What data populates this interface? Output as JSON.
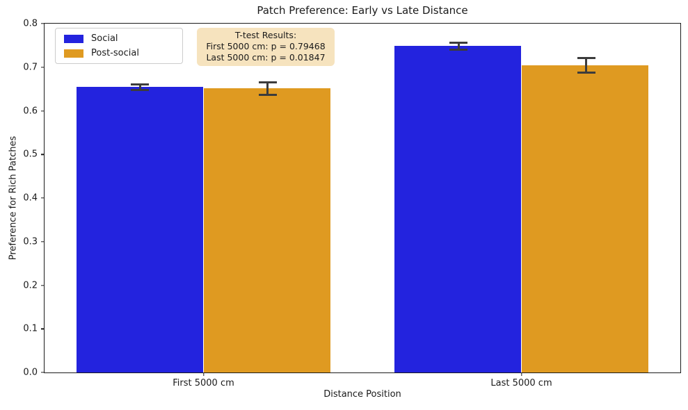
{
  "chart_data": {
    "type": "bar",
    "title": "Patch Preference: Early vs Late Distance",
    "xlabel": "Distance Position",
    "ylabel": "Preference for Rich Patches",
    "categories": [
      "First 5000 cm",
      "Last 5000 cm"
    ],
    "series": [
      {
        "name": "Social",
        "color": "#2323DE",
        "values": [
          0.655,
          0.749
        ],
        "errors": [
          0.006,
          0.008
        ]
      },
      {
        "name": "Post-social",
        "color": "#DF9A21",
        "values": [
          0.652,
          0.705
        ],
        "errors": [
          0.014,
          0.017
        ]
      }
    ],
    "ylim": [
      0.0,
      0.8
    ],
    "yticks": [
      0.0,
      0.1,
      0.2,
      0.3,
      0.4,
      0.5,
      0.6,
      0.7,
      0.8
    ],
    "ytick_format_decimals": 1,
    "grid": false,
    "legend_position": "upper left",
    "error_bar_color": "#3C3C3C",
    "bar_group_width": 0.8
  },
  "annotation": {
    "title": "T-test Results:",
    "line1": "First 5000 cm: p = 0.79468",
    "line2": "Last 5000 cm: p = 0.01847",
    "bg_color": "#F5DEB3",
    "bg_alpha": 0.85
  }
}
